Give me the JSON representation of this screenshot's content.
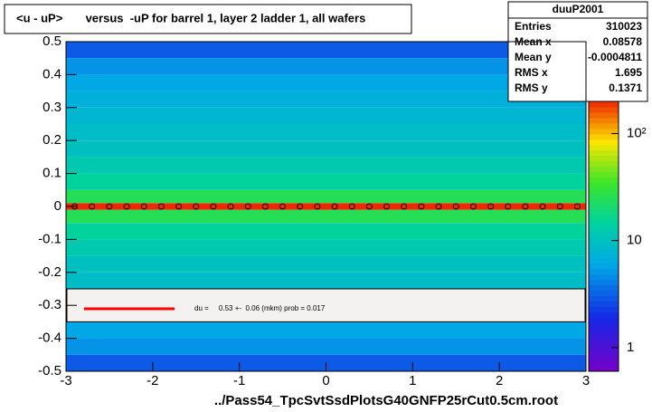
{
  "chart_data": {
    "type": "heatmap",
    "title": "<u - uP>       versus  -uP for barrel 1, layer 2 ladder 1, all wafers",
    "x_label": "../Pass54_TpcSvtSsdPlotsG40GNFP25rCut0.5cm.root",
    "xlim": [
      -3,
      3
    ],
    "xticks": [
      -3,
      -2,
      -1,
      0,
      1,
      2,
      3
    ],
    "ylim": [
      -0.5,
      0.5
    ],
    "yticks": [
      -0.5,
      -0.4,
      -0.3,
      -0.2,
      -0.1,
      0,
      0.1,
      0.2,
      0.3,
      0.4,
      0.5
    ],
    "zlim": [
      0.6,
      200
    ],
    "zscale": "log",
    "zticks": [
      1,
      10,
      {
        "value": 100,
        "label": "10²"
      }
    ],
    "y_bins": [
      -0.5,
      -0.45,
      -0.4,
      -0.35,
      -0.3,
      -0.25,
      -0.2,
      -0.15,
      -0.1,
      -0.05,
      -0.01,
      0.01,
      0.05,
      0.1,
      0.15,
      0.2,
      0.25,
      0.3,
      0.35,
      0.4,
      0.45,
      0.5
    ],
    "counts": [
      3,
      5,
      6,
      7,
      8,
      9,
      10,
      12,
      15,
      25,
      200,
      25,
      15,
      12,
      10,
      9,
      8,
      7,
      6,
      5,
      3
    ],
    "profile": {
      "x": [
        -2.9,
        -2.7,
        -2.5,
        -2.3,
        -2.1,
        -1.9,
        -1.7,
        -1.5,
        -1.3,
        -1.1,
        -0.9,
        -0.7,
        -0.5,
        -0.3,
        -0.1,
        0.1,
        0.3,
        0.5,
        0.7,
        0.9,
        1.1,
        1.3,
        1.5,
        1.7,
        1.9,
        2.1,
        2.3,
        2.5,
        2.7,
        2.9
      ],
      "values": [
        0,
        0,
        0,
        0,
        0,
        0,
        0,
        0,
        0,
        0,
        0,
        0,
        0,
        0,
        0,
        0,
        0,
        0,
        0,
        0,
        0,
        0,
        0,
        0,
        0,
        0,
        0,
        0,
        0,
        0
      ]
    },
    "fit_color": "#ff0000",
    "fit_label": "du =     0.53 +-  0.06 (mkm) prob = 0.017",
    "stats": {
      "name": "duuP2001",
      "rows": [
        [
          "Entries",
          310023
        ],
        [
          "Mean x",
          0.08578
        ],
        [
          "Mean y",
          -0.0004811
        ],
        [
          "RMS x",
          1.695
        ],
        [
          "RMS y",
          0.1371
        ]
      ]
    }
  }
}
